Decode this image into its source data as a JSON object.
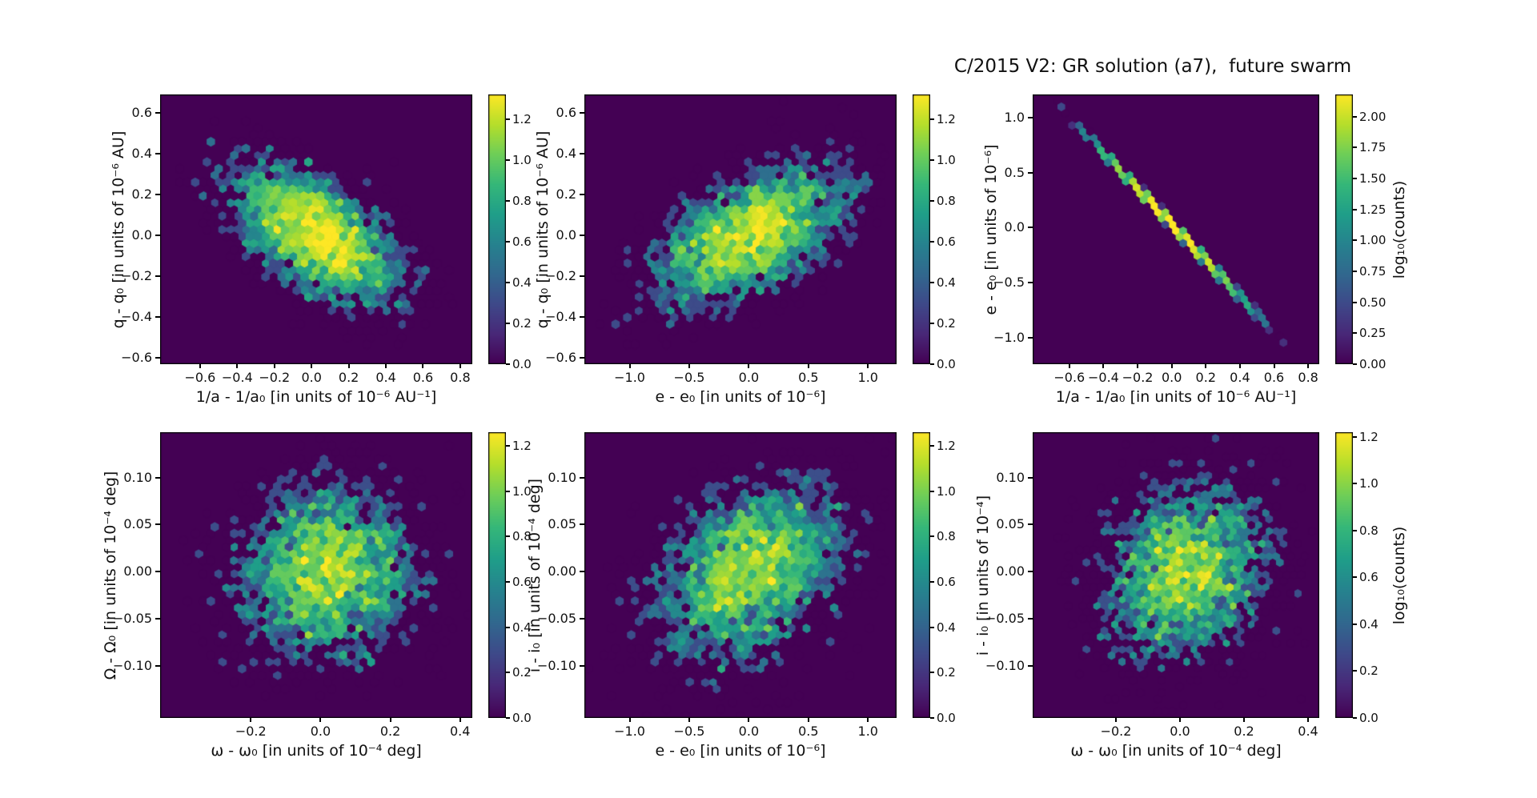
{
  "title": "C/2015 V2: GR solution (a7),  future swarm",
  "style": {
    "background": "#ffffff",
    "text_color": "#111111",
    "hex_background": "#440154",
    "hex_peak": "#fde725",
    "viridis_stops": [
      "#440154",
      "#482878",
      "#3e4989",
      "#31688e",
      "#26828e",
      "#1f9e89",
      "#35b779",
      "#6ece58",
      "#b5de2b",
      "#fde725"
    ]
  },
  "chart_data": [
    {
      "id": "q-vs-inverse-a",
      "type": "hexbin",
      "xlabel": "1/a - 1/a₀ [in units of 10⁻⁶ AU⁻¹]",
      "ylabel": "q - q₀ [in units of 10⁻⁶ AU]",
      "xlim": [
        -0.815,
        0.865
      ],
      "ylim": [
        -0.63,
        0.69
      ],
      "xticks": [
        -0.6,
        -0.4,
        -0.2,
        0.0,
        0.2,
        0.4,
        0.6,
        0.8
      ],
      "xtick_labels": [
        "−0.6",
        "−0.4",
        "−0.2",
        "0.0",
        "0.2",
        "0.4",
        "0.6",
        "0.8"
      ],
      "yticks": [
        -0.6,
        -0.4,
        -0.2,
        0.0,
        0.2,
        0.4,
        0.6
      ],
      "ytick_labels": [
        "−0.6",
        "−0.4",
        "−0.2",
        "0.0",
        "0.2",
        "0.4",
        "0.6"
      ],
      "colorbar": {
        "vmax": 1.32,
        "ticks": [
          0.0,
          0.2,
          0.4,
          0.6,
          0.8,
          1.0,
          1.2
        ],
        "tick_labels": [
          "0.0",
          "0.2",
          "0.4",
          "0.6",
          "0.8",
          "1.0",
          "1.2"
        ],
        "label": ""
      },
      "dist": {
        "kind": "gauss",
        "n": 3000,
        "cx": 0.03,
        "cy": 0.0,
        "sx": 0.22,
        "sy": 0.17,
        "rho": -0.55,
        "seed": 101
      },
      "gridsize": 40
    },
    {
      "id": "q-vs-e",
      "type": "hexbin",
      "xlabel": "e - e₀ [in units of 10⁻⁶]",
      "ylabel": "q - q₀ [in units of 10⁻⁶ AU]",
      "xlim": [
        -1.38,
        1.24
      ],
      "ylim": [
        -0.63,
        0.69
      ],
      "xticks": [
        -1.0,
        -0.5,
        0.0,
        0.5,
        1.0
      ],
      "xtick_labels": [
        "−1.0",
        "−0.5",
        "0.0",
        "0.5",
        "1.0"
      ],
      "yticks": [
        -0.6,
        -0.4,
        -0.2,
        0.0,
        0.2,
        0.4,
        0.6
      ],
      "ytick_labels": [
        "−0.6",
        "−0.4",
        "−0.2",
        "0.0",
        "0.2",
        "0.4",
        "0.6"
      ],
      "colorbar": {
        "vmax": 1.32,
        "ticks": [
          0.0,
          0.2,
          0.4,
          0.6,
          0.8,
          1.0,
          1.2
        ],
        "tick_labels": [
          "0.0",
          "0.2",
          "0.4",
          "0.6",
          "0.8",
          "1.0",
          "1.2"
        ],
        "label": ""
      },
      "dist": {
        "kind": "gauss",
        "n": 3000,
        "cx": 0.0,
        "cy": 0.0,
        "sx": 0.4,
        "sy": 0.17,
        "rho": 0.55,
        "seed": 202
      },
      "gridsize": 40
    },
    {
      "id": "e-vs-inverse-a",
      "type": "hexbin",
      "xlabel": "1/a - 1/a₀ [in units of 10⁻⁶ AU⁻¹]",
      "ylabel": "e - e₀ [in units of 10⁻⁶]",
      "xlim": [
        -0.815,
        0.865
      ],
      "ylim": [
        -1.24,
        1.21
      ],
      "xticks": [
        -0.6,
        -0.4,
        -0.2,
        0.0,
        0.2,
        0.4,
        0.6,
        0.8
      ],
      "xtick_labels": [
        "−0.6",
        "−0.4",
        "−0.2",
        "0.0",
        "0.2",
        "0.4",
        "0.6",
        "0.8"
      ],
      "yticks": [
        -1.0,
        -0.5,
        0.0,
        0.5,
        1.0
      ],
      "ytick_labels": [
        "−1.0",
        "−0.5",
        "0.0",
        "0.5",
        "1.0"
      ],
      "colorbar": {
        "vmax": 2.18,
        "ticks": [
          0.0,
          0.25,
          0.5,
          0.75,
          1.0,
          1.25,
          1.5,
          1.75,
          2.0
        ],
        "tick_labels": [
          "0.00",
          "0.25",
          "0.50",
          "0.75",
          "1.00",
          "1.25",
          "1.50",
          "1.75",
          "2.00"
        ],
        "label": "log₁₀(counts)"
      },
      "dist": {
        "kind": "line",
        "n": 3000,
        "cx": 0.0,
        "cy": 0.03,
        "sx": 0.205,
        "slope": -1.64,
        "noise": 0.004,
        "seed": 303
      },
      "gridsize": 40
    },
    {
      "id": "Omega-vs-omega",
      "type": "hexbin",
      "xlabel": "ω - ω₀ [in units of 10⁻⁴ deg]",
      "ylabel": "Ω - Ω₀ [in units of 10⁻⁴ deg]",
      "xlim": [
        -0.46,
        0.435
      ],
      "ylim": [
        -0.155,
        0.148
      ],
      "xticks": [
        -0.2,
        0.0,
        0.2,
        0.4
      ],
      "xtick_labels": [
        "−0.2",
        "0.0",
        "0.2",
        "0.4"
      ],
      "yticks": [
        -0.1,
        -0.05,
        0.0,
        0.05,
        0.1
      ],
      "ytick_labels": [
        "−0.10",
        "−0.05",
        "0.00",
        "0.05",
        "0.10"
      ],
      "colorbar": {
        "vmax": 1.26,
        "ticks": [
          0.0,
          0.2,
          0.4,
          0.6,
          0.8,
          1.0,
          1.2
        ],
        "tick_labels": [
          "0.0",
          "0.2",
          "0.4",
          "0.6",
          "0.8",
          "1.0",
          "1.2"
        ],
        "label": ""
      },
      "dist": {
        "kind": "gauss",
        "n": 3000,
        "cx": 0.02,
        "cy": 0.0,
        "sx": 0.13,
        "sy": 0.047,
        "rho": 0.05,
        "seed": 404
      },
      "gridsize": 40
    },
    {
      "id": "i-vs-e",
      "type": "hexbin",
      "xlabel": "e - e₀ [in units of 10⁻⁶]",
      "ylabel": "i - i₀ [in units of 10⁻⁴ deg]",
      "xlim": [
        -1.38,
        1.24
      ],
      "ylim": [
        -0.155,
        0.148
      ],
      "xticks": [
        -1.0,
        -0.5,
        0.0,
        0.5,
        1.0
      ],
      "xtick_labels": [
        "−1.0",
        "−0.5",
        "0.0",
        "0.5",
        "1.0"
      ],
      "yticks": [
        -0.1,
        -0.05,
        0.0,
        0.05,
        0.1
      ],
      "ytick_labels": [
        "−0.10",
        "−0.05",
        "0.00",
        "0.05",
        "0.10"
      ],
      "colorbar": {
        "vmax": 1.26,
        "ticks": [
          0.0,
          0.2,
          0.4,
          0.6,
          0.8,
          1.0,
          1.2
        ],
        "tick_labels": [
          "0.0",
          "0.2",
          "0.4",
          "0.6",
          "0.8",
          "1.0",
          "1.2"
        ],
        "label": ""
      },
      "dist": {
        "kind": "gauss",
        "n": 3000,
        "cx": 0.0,
        "cy": 0.0,
        "sx": 0.4,
        "sy": 0.047,
        "rho": 0.35,
        "seed": 505
      },
      "gridsize": 40
    },
    {
      "id": "i-vs-omega",
      "type": "hexbin",
      "xlabel": "ω - ω₀ [in units of 10⁻⁴ deg]",
      "ylabel": "i - i₀ [in units of 10⁻⁴]",
      "xlim": [
        -0.46,
        0.435
      ],
      "ylim": [
        -0.155,
        0.148
      ],
      "xticks": [
        -0.2,
        0.0,
        0.2,
        0.4
      ],
      "xtick_labels": [
        "−0.2",
        "0.0",
        "0.2",
        "0.4"
      ],
      "yticks": [
        -0.1,
        -0.05,
        0.0,
        0.05,
        0.1
      ],
      "ytick_labels": [
        "−0.10",
        "−0.05",
        "0.00",
        "0.05",
        "0.10"
      ],
      "colorbar": {
        "vmax": 1.22,
        "ticks": [
          0.0,
          0.2,
          0.4,
          0.6,
          0.8,
          1.0,
          1.2
        ],
        "tick_labels": [
          "0.0",
          "0.2",
          "0.4",
          "0.6",
          "0.8",
          "1.0",
          "1.2"
        ],
        "label": "log₁₀(counts)"
      },
      "dist": {
        "kind": "gauss",
        "n": 3000,
        "cx": 0.02,
        "cy": 0.0,
        "sx": 0.13,
        "sy": 0.047,
        "rho": 0.12,
        "seed": 606
      },
      "gridsize": 40
    }
  ]
}
